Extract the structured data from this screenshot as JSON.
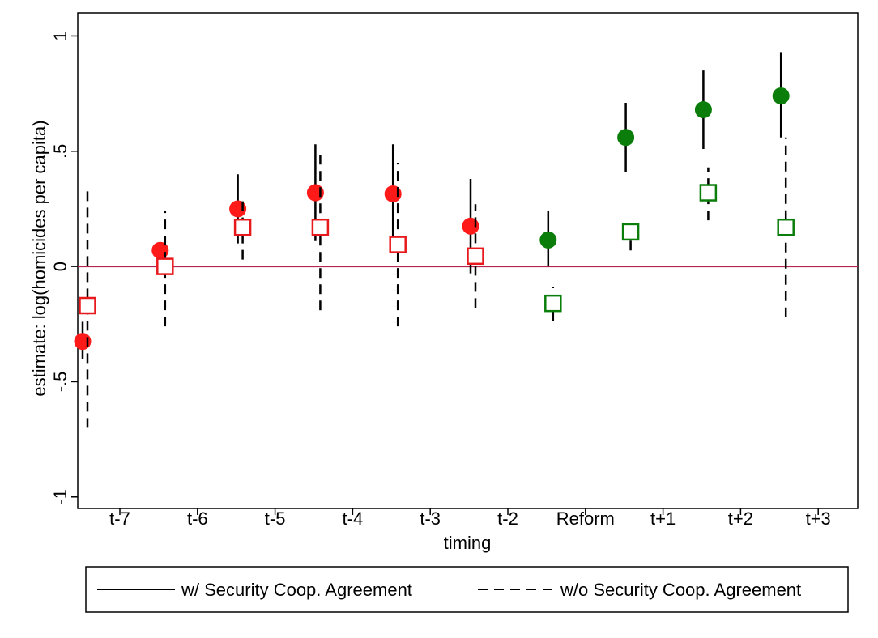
{
  "chart_data": {
    "type": "scatter",
    "title": "",
    "xlabel": "timing",
    "ylabel": "estimate: log(homicides per capita)",
    "categories": [
      "t-7",
      "t-6",
      "t-5",
      "t-4",
      "t-3",
      "t-2",
      "Reform",
      "t+1",
      "t+2",
      "t+3"
    ],
    "ylim": [
      -1.05,
      1.1
    ],
    "yticks": [
      1,
      0.5,
      0,
      -0.5,
      -1
    ],
    "ytick_labels": [
      "1",
      ".5",
      "0",
      "-.5",
      "-1"
    ],
    "grid": false,
    "reference_line": {
      "y": 0,
      "color": "#b3264f"
    },
    "series": [
      {
        "name": "w/ Security Coop. Agreement",
        "marker": "filled-circle",
        "line_style": "solid",
        "points": [
          {
            "x": "t-7",
            "y": -0.325,
            "lo": -0.4,
            "hi": -0.24,
            "color": "#ff1a1a"
          },
          {
            "x": "t-6",
            "y": 0.07,
            "lo": 0.03,
            "hi": 0.1,
            "color": "#ff1a1a"
          },
          {
            "x": "t-5",
            "y": 0.25,
            "lo": 0.1,
            "hi": 0.4,
            "color": "#ff1a1a"
          },
          {
            "x": "t-4",
            "y": 0.32,
            "lo": 0.11,
            "hi": 0.53,
            "color": "#ff1a1a"
          },
          {
            "x": "t-3",
            "y": 0.315,
            "lo": 0.1,
            "hi": 0.53,
            "color": "#ff1a1a"
          },
          {
            "x": "t-2",
            "y": 0.175,
            "lo": -0.03,
            "hi": 0.38,
            "color": "#ff1a1a"
          },
          {
            "x": "Reform",
            "y": 0.115,
            "lo": 0.0,
            "hi": 0.24,
            "color": "#0a7d0a"
          },
          {
            "x": "t+1",
            "y": 0.56,
            "lo": 0.41,
            "hi": 0.71,
            "color": "#0a7d0a"
          },
          {
            "x": "t+2",
            "y": 0.68,
            "lo": 0.51,
            "hi": 0.85,
            "color": "#0a7d0a"
          },
          {
            "x": "t+3",
            "y": 0.74,
            "lo": 0.56,
            "hi": 0.93,
            "color": "#0a7d0a"
          }
        ]
      },
      {
        "name": "w/o Security Coop. Agreement",
        "marker": "hollow-square",
        "line_style": "dashed",
        "points": [
          {
            "x": "t-7",
            "y": -0.17,
            "lo": -0.7,
            "hi": 0.35,
            "color": "#e8191c"
          },
          {
            "x": "t-6",
            "y": 0.0,
            "lo": -0.26,
            "hi": 0.24,
            "color": "#e8191c"
          },
          {
            "x": "t-5",
            "y": 0.17,
            "lo": 0.03,
            "hi": 0.31,
            "color": "#e8191c"
          },
          {
            "x": "t-4",
            "y": 0.17,
            "lo": -0.19,
            "hi": 0.51,
            "color": "#e8191c"
          },
          {
            "x": "t-3",
            "y": 0.095,
            "lo": -0.26,
            "hi": 0.45,
            "color": "#e8191c"
          },
          {
            "x": "t-2",
            "y": 0.045,
            "lo": -0.18,
            "hi": 0.27,
            "color": "#e8191c"
          },
          {
            "x": "Reform",
            "y": -0.16,
            "lo": -0.235,
            "hi": -0.09,
            "color": "#0a7d0a"
          },
          {
            "x": "t+1",
            "y": 0.15,
            "lo": 0.07,
            "hi": 0.21,
            "color": "#0a7d0a"
          },
          {
            "x": "t+2",
            "y": 0.32,
            "lo": 0.2,
            "hi": 0.43,
            "color": "#0a7d0a"
          },
          {
            "x": "t+3",
            "y": 0.17,
            "lo": -0.22,
            "hi": 0.56,
            "color": "#0a7d0a"
          }
        ]
      }
    ],
    "legend": {
      "placement": "bottom",
      "entries": [
        "w/ Security Coop. Agreement",
        "w/o Security Coop. Agreement"
      ]
    }
  }
}
